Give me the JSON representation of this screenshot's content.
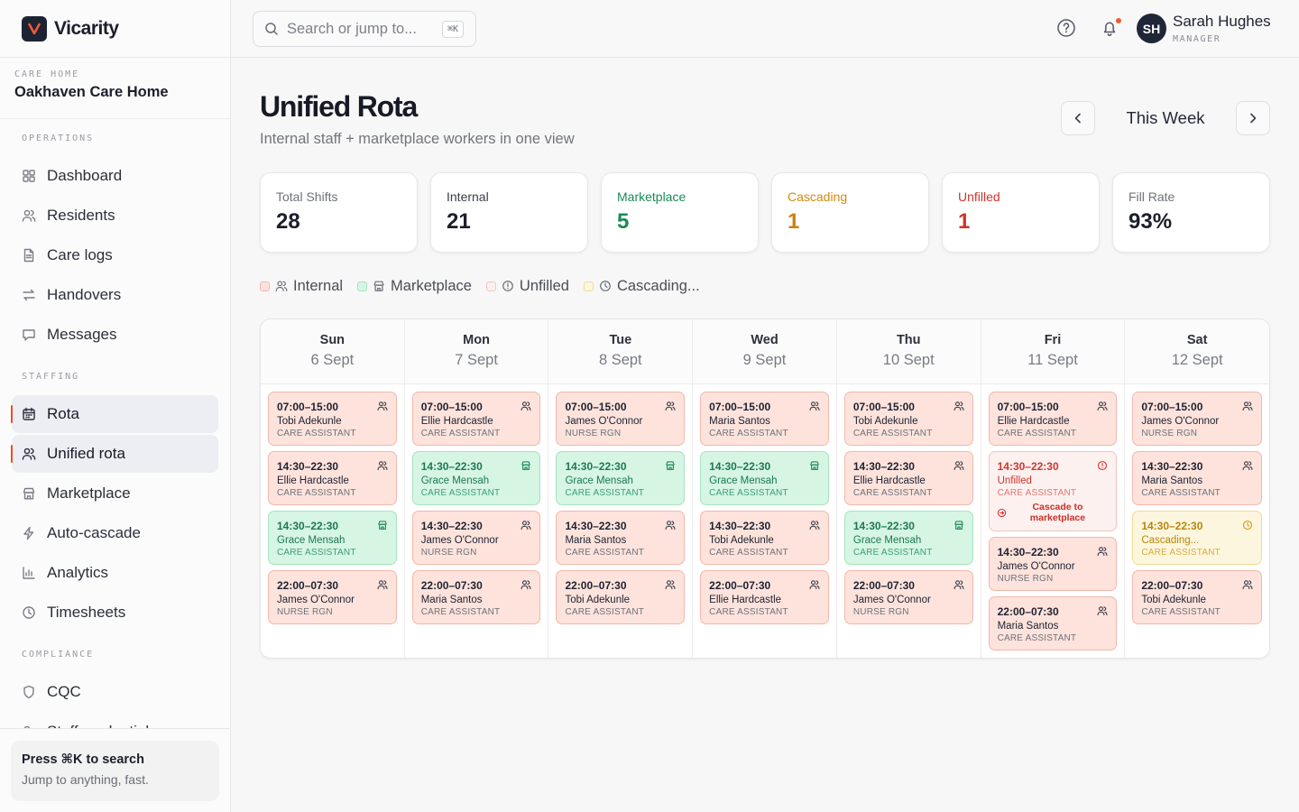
{
  "brand": {
    "name": "Vicarity"
  },
  "care_home": {
    "caption": "CARE HOME",
    "name": "Oakhaven Care Home"
  },
  "nav": {
    "sections": [
      {
        "title": "OPERATIONS",
        "items": [
          {
            "label": "Dashboard",
            "icon": "grid-icon"
          },
          {
            "label": "Residents",
            "icon": "users-icon"
          },
          {
            "label": "Care logs",
            "icon": "file-icon"
          },
          {
            "label": "Handovers",
            "icon": "swap-icon"
          },
          {
            "label": "Messages",
            "icon": "message-icon"
          }
        ]
      },
      {
        "title": "STAFFING",
        "items": [
          {
            "label": "Rota",
            "icon": "calendar-icon",
            "active": true
          },
          {
            "label": "Unified rota",
            "icon": "users-icon",
            "active": true
          },
          {
            "label": "Marketplace",
            "icon": "store-icon"
          },
          {
            "label": "Auto-cascade",
            "icon": "bolt-icon"
          },
          {
            "label": "Analytics",
            "icon": "bar-chart-icon"
          },
          {
            "label": "Timesheets",
            "icon": "clock-icon"
          }
        ]
      },
      {
        "title": "COMPLIANCE",
        "items": [
          {
            "label": "CQC",
            "icon": "shield-icon"
          },
          {
            "label": "Staff credentials",
            "icon": "user-check-icon"
          }
        ]
      }
    ]
  },
  "footer_tip": {
    "title": "Press ⌘K to search",
    "subtitle": "Jump to anything, fast."
  },
  "topbar": {
    "search_placeholder": "Search or jump to...",
    "search_shortcut": "⌘K",
    "user": {
      "initials": "SH",
      "name": "Sarah Hughes",
      "role": "MANAGER"
    }
  },
  "page": {
    "title": "Unified Rota",
    "subtitle": "Internal staff + marketplace workers in one view",
    "week_label": "This Week"
  },
  "stats": [
    {
      "label": "Total Shifts",
      "value": "28",
      "color": "#1b1e2b",
      "label_color": "#6f727b"
    },
    {
      "label": "Internal",
      "value": "21",
      "color": "#1b1e2b",
      "label_color": "#3a3d48"
    },
    {
      "label": "Marketplace",
      "value": "5",
      "color": "#1b8a55",
      "label_color": "#1b8a55"
    },
    {
      "label": "Cascading",
      "value": "1",
      "color": "#c98310",
      "label_color": "#d08a12"
    },
    {
      "label": "Unfilled",
      "value": "1",
      "color": "#d0342c",
      "label_color": "#d0342c"
    },
    {
      "label": "Fill Rate",
      "value": "93%",
      "color": "#1b1e2b",
      "label_color": "#6f727b"
    }
  ],
  "legend": [
    {
      "label": "Internal",
      "swatch": "#fde3dc",
      "border": "#f2b8a9",
      "icon": "users-icon"
    },
    {
      "label": "Marketplace",
      "swatch": "#d6f5e3",
      "border": "#a6e3c0",
      "icon": "store-icon"
    },
    {
      "label": "Unfilled",
      "swatch": "#fdf1f0",
      "border": "#f3c4c1",
      "icon": "alert-icon"
    },
    {
      "label": "Cascading...",
      "swatch": "#fdf6de",
      "border": "#f0dc95",
      "icon": "clock-icon"
    }
  ],
  "days": [
    {
      "day": "Sun",
      "date": "6 Sept",
      "shifts": [
        {
          "type": "internal",
          "time": "07:00–15:00",
          "name": "Tobi Adekunle",
          "role": "CARE ASSISTANT"
        },
        {
          "type": "internal",
          "time": "14:30–22:30",
          "name": "Ellie Hardcastle",
          "role": "CARE ASSISTANT"
        },
        {
          "type": "market",
          "time": "14:30–22:30",
          "name": "Grace Mensah",
          "role": "CARE ASSISTANT"
        },
        {
          "type": "internal",
          "time": "22:00–07:30",
          "name": "James O'Connor",
          "role": "NURSE RGN"
        }
      ]
    },
    {
      "day": "Mon",
      "date": "7 Sept",
      "shifts": [
        {
          "type": "internal",
          "time": "07:00–15:00",
          "name": "Ellie Hardcastle",
          "role": "CARE ASSISTANT"
        },
        {
          "type": "market",
          "time": "14:30–22:30",
          "name": "Grace Mensah",
          "role": "CARE ASSISTANT"
        },
        {
          "type": "internal",
          "time": "14:30–22:30",
          "name": "James O'Connor",
          "role": "NURSE RGN"
        },
        {
          "type": "internal",
          "time": "22:00–07:30",
          "name": "Maria Santos",
          "role": "CARE ASSISTANT"
        }
      ]
    },
    {
      "day": "Tue",
      "date": "8 Sept",
      "shifts": [
        {
          "type": "internal",
          "time": "07:00–15:00",
          "name": "James O'Connor",
          "role": "NURSE RGN"
        },
        {
          "type": "market",
          "time": "14:30–22:30",
          "name": "Grace Mensah",
          "role": "CARE ASSISTANT"
        },
        {
          "type": "internal",
          "time": "14:30–22:30",
          "name": "Maria Santos",
          "role": "CARE ASSISTANT"
        },
        {
          "type": "internal",
          "time": "22:00–07:30",
          "name": "Tobi Adekunle",
          "role": "CARE ASSISTANT"
        }
      ]
    },
    {
      "day": "Wed",
      "date": "9 Sept",
      "shifts": [
        {
          "type": "internal",
          "time": "07:00–15:00",
          "name": "Maria Santos",
          "role": "CARE ASSISTANT"
        },
        {
          "type": "market",
          "time": "14:30–22:30",
          "name": "Grace Mensah",
          "role": "CARE ASSISTANT"
        },
        {
          "type": "internal",
          "time": "14:30–22:30",
          "name": "Tobi Adekunle",
          "role": "CARE ASSISTANT"
        },
        {
          "type": "internal",
          "time": "22:00–07:30",
          "name": "Ellie Hardcastle",
          "role": "CARE ASSISTANT"
        }
      ]
    },
    {
      "day": "Thu",
      "date": "10 Sept",
      "shifts": [
        {
          "type": "internal",
          "time": "07:00–15:00",
          "name": "Tobi Adekunle",
          "role": "CARE ASSISTANT"
        },
        {
          "type": "internal",
          "time": "14:30–22:30",
          "name": "Ellie Hardcastle",
          "role": "CARE ASSISTANT"
        },
        {
          "type": "market",
          "time": "14:30–22:30",
          "name": "Grace Mensah",
          "role": "CARE ASSISTANT"
        },
        {
          "type": "internal",
          "time": "22:00–07:30",
          "name": "James O'Connor",
          "role": "NURSE RGN"
        }
      ]
    },
    {
      "day": "Fri",
      "date": "11 Sept",
      "shifts": [
        {
          "type": "internal",
          "time": "07:00–15:00",
          "name": "Ellie Hardcastle",
          "role": "CARE ASSISTANT"
        },
        {
          "type": "unfilled",
          "time": "14:30–22:30",
          "name": "Unfilled",
          "role": "CARE ASSISTANT",
          "action": "Cascade to marketplace"
        },
        {
          "type": "internal",
          "time": "14:30–22:30",
          "name": "James O'Connor",
          "role": "NURSE RGN"
        },
        {
          "type": "internal",
          "time": "22:00–07:30",
          "name": "Maria Santos",
          "role": "CARE ASSISTANT"
        }
      ]
    },
    {
      "day": "Sat",
      "date": "12 Sept",
      "shifts": [
        {
          "type": "internal",
          "time": "07:00–15:00",
          "name": "James O'Connor",
          "role": "NURSE RGN"
        },
        {
          "type": "internal",
          "time": "14:30–22:30",
          "name": "Maria Santos",
          "role": "CARE ASSISTANT"
        },
        {
          "type": "cascade",
          "time": "14:30–22:30",
          "name": "Cascading...",
          "role": "CARE ASSISTANT"
        },
        {
          "type": "internal",
          "time": "22:00–07:30",
          "name": "Tobi Adekunle",
          "role": "CARE ASSISTANT"
        }
      ]
    }
  ]
}
